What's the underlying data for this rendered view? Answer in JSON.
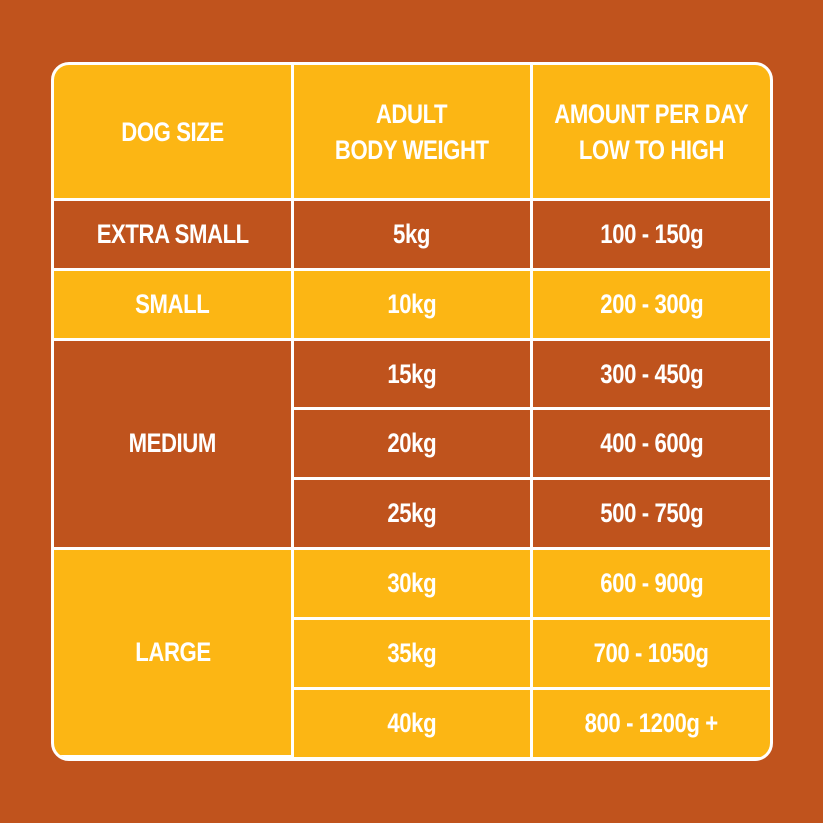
{
  "table": {
    "header": [
      [
        "DOG SIZE"
      ],
      [
        "ADULT",
        "BODY WEIGHT"
      ],
      [
        "AMOUNT PER DAY",
        "LOW TO HIGH"
      ]
    ],
    "groups": [
      {
        "size": "EXTRA SMALL",
        "rows": [
          [
            "5kg",
            "100 - 150g"
          ]
        ]
      },
      {
        "size": "SMALL",
        "rows": [
          [
            "10kg",
            "200 - 300g"
          ]
        ]
      },
      {
        "size": "MEDIUM",
        "rows": [
          [
            "15kg",
            "300 - 450g"
          ],
          [
            "20kg",
            "400 - 600g"
          ],
          [
            "25kg",
            "500 - 750g"
          ]
        ]
      },
      {
        "size": "LARGE",
        "rows": [
          [
            "30kg",
            "600 - 900g"
          ],
          [
            "35kg",
            "700 - 1050g"
          ],
          [
            "40kg",
            "800 - 1200g +"
          ]
        ]
      }
    ]
  }
}
